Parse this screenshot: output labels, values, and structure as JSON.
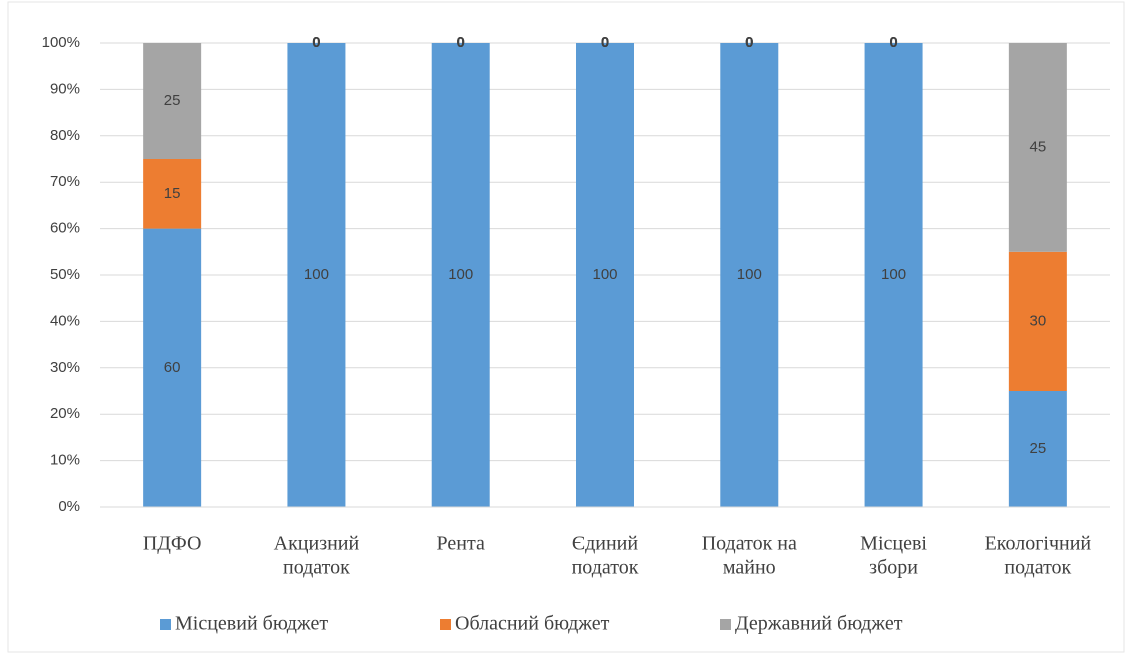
{
  "chart_data": {
    "type": "stacked_bar",
    "categories": [
      [
        "ПДФО"
      ],
      [
        "Акцизний",
        "податок"
      ],
      [
        "Рента"
      ],
      [
        "Єдиний",
        "податок"
      ],
      [
        "Податок на",
        "майно"
      ],
      [
        "Місцеві",
        "збори"
      ],
      [
        "Екологічний",
        "податок"
      ]
    ],
    "series": [
      {
        "name": "Місцевий бюджет",
        "color": "#5b9bd5",
        "values": [
          60,
          100,
          100,
          100,
          100,
          100,
          25
        ]
      },
      {
        "name": "Обласний бюджет",
        "color": "#ed7d31",
        "values": [
          15,
          0,
          0,
          0,
          0,
          0,
          30
        ]
      },
      {
        "name": "Державний бюджет",
        "color": "#a5a5a5",
        "values": [
          25,
          0,
          0,
          0,
          0,
          0,
          45
        ]
      }
    ],
    "ylim": [
      0,
      100
    ],
    "yticks": [
      {
        "value": 0,
        "label": "0%"
      },
      {
        "value": 10,
        "label": "10%"
      },
      {
        "value": 20,
        "label": "20%"
      },
      {
        "value": 30,
        "label": "30%"
      },
      {
        "value": 40,
        "label": "40%"
      },
      {
        "value": 50,
        "label": "50%"
      },
      {
        "value": 60,
        "label": "60%"
      },
      {
        "value": 70,
        "label": "70%"
      },
      {
        "value": 80,
        "label": "80%"
      },
      {
        "value": 90,
        "label": "90%"
      },
      {
        "value": 100,
        "label": "100%"
      }
    ],
    "grid": true,
    "legend": "bottom"
  }
}
